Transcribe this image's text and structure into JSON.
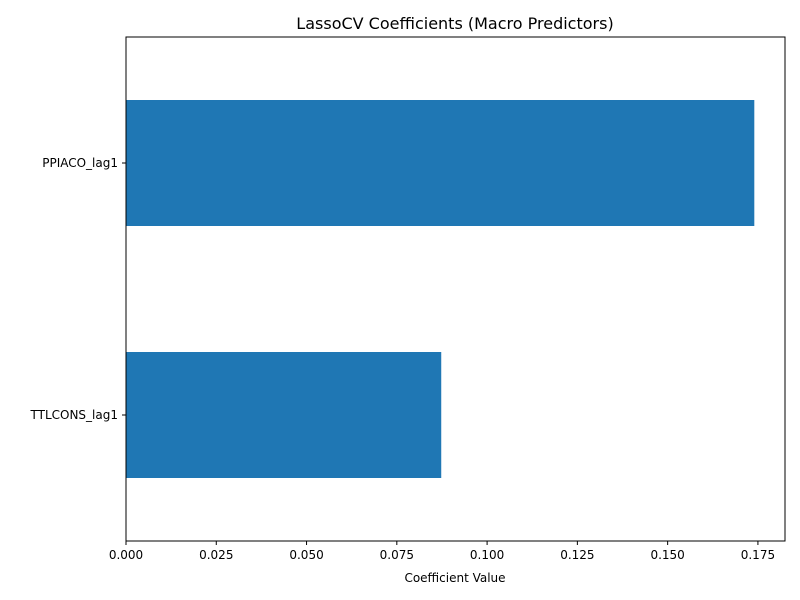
{
  "chart_data": {
    "type": "bar",
    "orientation": "horizontal",
    "title": "LassoCV Coefficients (Macro Predictors)",
    "xlabel": "Coefficient Value",
    "ylabel": "",
    "categories": [
      "PPIACO_lag1",
      "TTLCONS_lag1"
    ],
    "values": [
      0.174,
      0.0873
    ],
    "xlim": [
      0,
      0.1825
    ],
    "xticks": [
      "0.000",
      "0.025",
      "0.050",
      "0.075",
      "0.100",
      "0.125",
      "0.150",
      "0.175"
    ],
    "bar_color": "#1f77b4",
    "grid": false,
    "legend": "none"
  }
}
